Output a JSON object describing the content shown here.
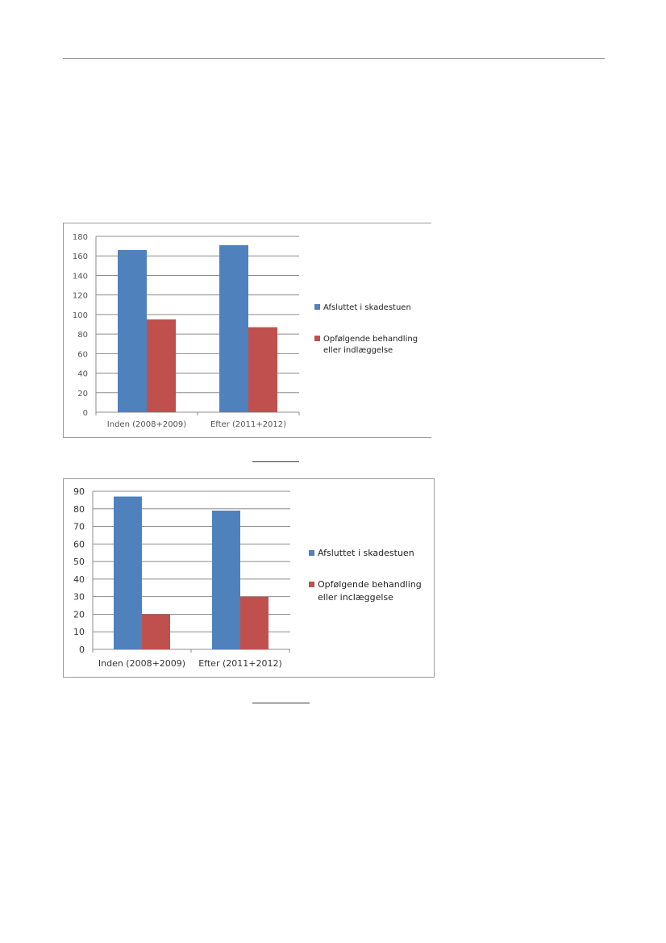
{
  "chart_data": [
    {
      "type": "bar",
      "categories": [
        "Inden (2008+2009)",
        "Efter (2011+2012)"
      ],
      "series": [
        {
          "name": "Afsluttet i skadestuen",
          "values": [
            166,
            171
          ],
          "color": "#4f81bd"
        },
        {
          "name": "Opfølgende behandling eller indlæggelse",
          "values": [
            95,
            87
          ],
          "color": "#c0504d"
        }
      ],
      "ylim": [
        0,
        180
      ],
      "yticks": [
        0,
        20,
        40,
        60,
        80,
        100,
        120,
        140,
        160,
        180
      ],
      "grid": true,
      "legend": "right",
      "title": "",
      "xlabel": "",
      "ylabel": ""
    },
    {
      "type": "bar",
      "categories": [
        "Inden (2008+2009)",
        "Efter (2011+2012)"
      ],
      "series": [
        {
          "name": "Afsluttet i skadestuen",
          "values": [
            87,
            79
          ],
          "color": "#4f81bd"
        },
        {
          "name": "Opfølgende behandling eller inclæggelse",
          "values": [
            20,
            30
          ],
          "color": "#c0504d"
        }
      ],
      "ylim": [
        0,
        90
      ],
      "yticks": [
        0,
        10,
        20,
        30,
        40,
        50,
        60,
        70,
        80,
        90
      ],
      "grid": true,
      "legend": "right",
      "title": "",
      "xlabel": "",
      "ylabel": ""
    }
  ]
}
